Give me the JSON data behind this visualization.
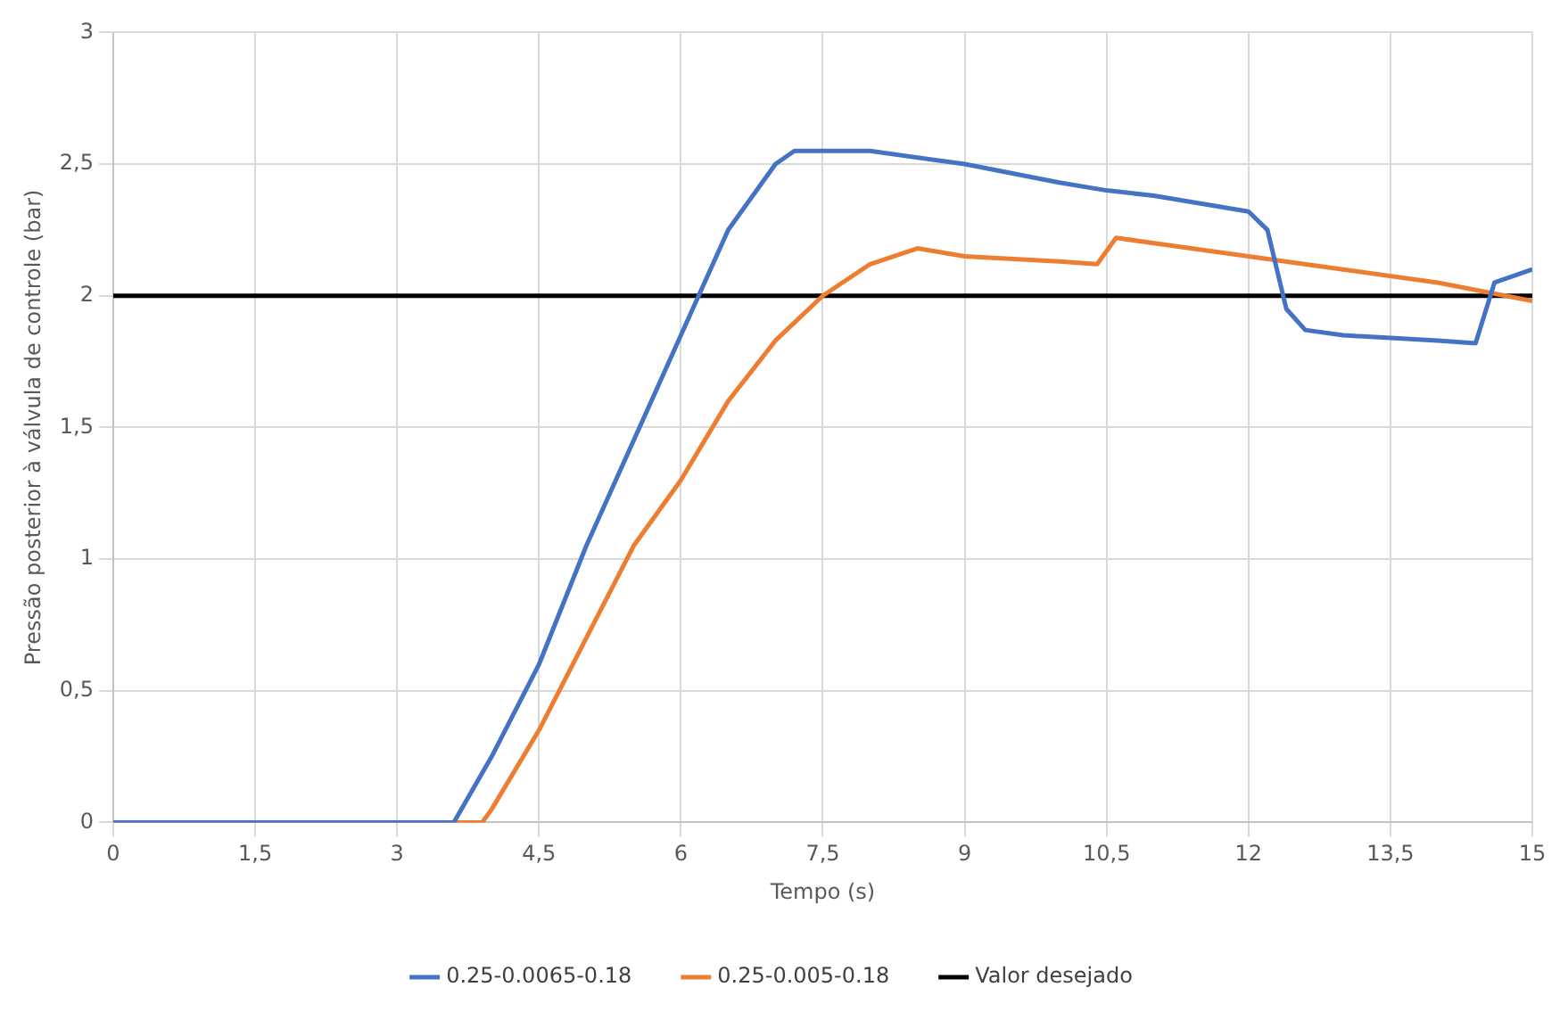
{
  "chart_data": {
    "type": "line",
    "xlabel": "Tempo (s)",
    "ylabel": "Pressão posterior à válvula de controle (bar)",
    "xlim": [
      0,
      15
    ],
    "ylim": [
      0,
      3
    ],
    "xticks": [
      0,
      {
        "value": 1.5,
        "label": "1,5"
      },
      3,
      {
        "value": 4.5,
        "label": "4,5"
      },
      6,
      {
        "value": 7.5,
        "label": "7,5"
      },
      9,
      {
        "value": 10.5,
        "label": "10,5"
      },
      12,
      {
        "value": 13.5,
        "label": "13,5"
      },
      15
    ],
    "yticks": [
      0,
      {
        "value": 0.5,
        "label": "0,5"
      },
      1,
      {
        "value": 1.5,
        "label": "1,5"
      },
      2,
      {
        "value": 2.5,
        "label": "2,5"
      },
      3
    ],
    "grid": true,
    "legend": "bottom",
    "marker": "none",
    "line_style": "solid",
    "series": [
      {
        "name": "0.25-0.0065-0.18",
        "color": "#4472c4",
        "x": [
          0,
          3.6,
          4,
          4.5,
          5,
          5.5,
          6,
          6.5,
          7,
          7.2,
          7.5,
          8,
          9,
          10,
          10.5,
          11,
          12,
          12.2,
          12.4,
          12.6,
          13,
          14,
          14.4,
          14.6,
          15
        ],
        "values": [
          0,
          0,
          0.25,
          0.6,
          1.05,
          1.45,
          1.85,
          2.25,
          2.5,
          2.55,
          2.55,
          2.55,
          2.5,
          2.43,
          2.4,
          2.38,
          2.32,
          2.25,
          1.95,
          1.87,
          1.85,
          1.83,
          1.82,
          2.05,
          2.1
        ]
      },
      {
        "name": "0.25-0.005-0.18",
        "color": "#ed7d31",
        "x": [
          0,
          3.9,
          4,
          4.5,
          5,
          5.5,
          6,
          6.5,
          7,
          7.5,
          8,
          8.5,
          9,
          10,
          10.4,
          10.6,
          11,
          12,
          13,
          14,
          15
        ],
        "values": [
          0,
          0,
          0.05,
          0.35,
          0.7,
          1.05,
          1.3,
          1.6,
          1.83,
          2,
          2.12,
          2.18,
          2.15,
          2.13,
          2.12,
          2.22,
          2.2,
          2.15,
          2.1,
          2.05,
          1.98
        ]
      },
      {
        "name": "Valor desejado",
        "color": "#000000",
        "x": [
          0,
          15
        ],
        "values": [
          2,
          2
        ]
      }
    ]
  }
}
